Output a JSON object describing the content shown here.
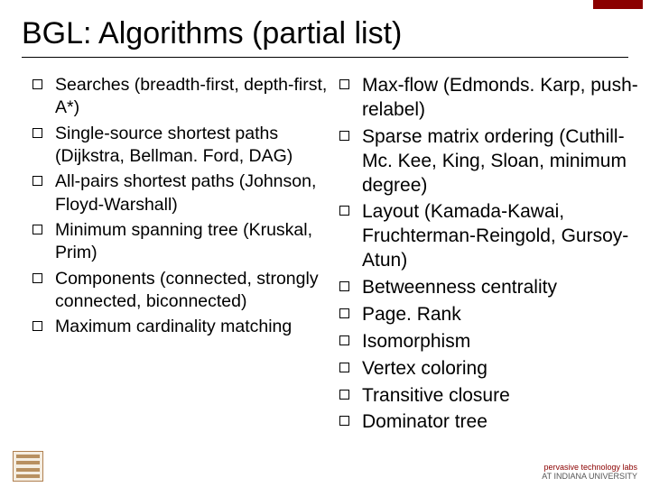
{
  "accent_color": "#8b0000",
  "title": "BGL: Algorithms (partial list)",
  "left_items": [
    "Searches (breadth-first, depth-first, A*)",
    "Single-source shortest paths (Dijkstra, Bellman. Ford, DAG)",
    "All-pairs shortest paths (Johnson, Floyd-Warshall)",
    "Minimum spanning tree (Kruskal, Prim)",
    "Components (connected, strongly connected, biconnected)",
    "Maximum cardinality matching"
  ],
  "right_items": [
    "Max-flow (Edmonds. Karp, push-relabel)",
    "Sparse matrix ordering (Cuthill-Mc. Kee, King, Sloan, minimum degree)",
    "Layout (Kamada-Kawai, Fruchterman-Reingold, Gursoy-Atun)",
    "Betweenness centrality",
    "Page. Rank",
    "Isomorphism",
    "Vertex coloring",
    "Transitive closure",
    "Dominator tree"
  ],
  "footer_right_line1": "pervasive technology labs",
  "footer_right_line2": "AT INDIANA UNIVERSITY"
}
